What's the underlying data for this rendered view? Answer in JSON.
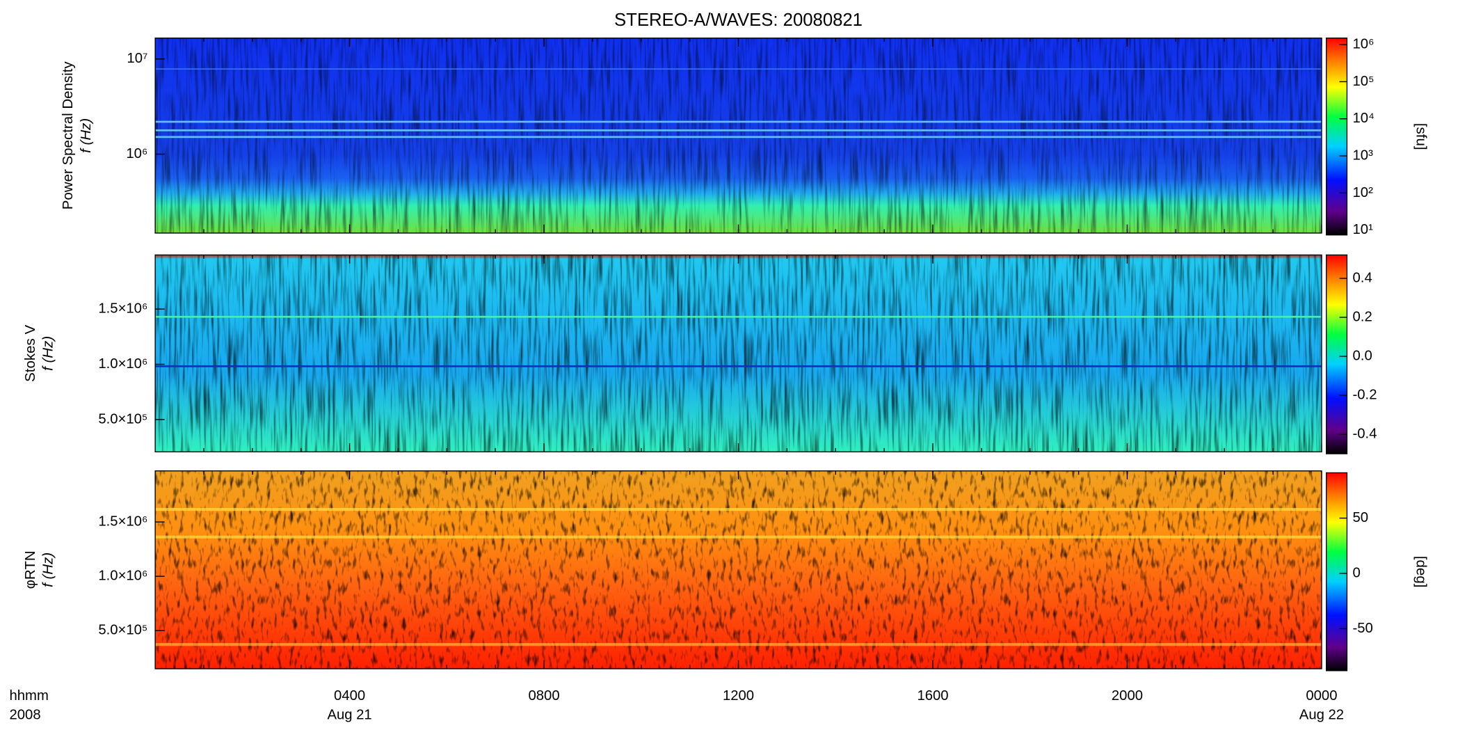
{
  "title": "STEREO-A/WAVES: 20080821",
  "x_axis": {
    "label": "hhmm",
    "year": "2008",
    "xlim": [
      0,
      24
    ],
    "xticks": [
      {
        "value": 4,
        "label": "0400"
      },
      {
        "value": 8,
        "label": "0800"
      },
      {
        "value": 12,
        "label": "1200"
      },
      {
        "value": 16,
        "label": "1600"
      },
      {
        "value": 20,
        "label": "2000"
      },
      {
        "value": 24,
        "label": "0000"
      }
    ],
    "dates": [
      {
        "value": 4,
        "label": "Aug 21"
      },
      {
        "value": 24,
        "label": "Aug 22"
      }
    ]
  },
  "chart_data": [
    {
      "type": "heatmap",
      "ylabel": [
        "Power Spectral Density",
        "f (Hz)"
      ],
      "ylog": true,
      "ylim": [
        148000,
        16600000
      ],
      "yticks": [
        {
          "value": 1000000,
          "label": "10⁶"
        },
        {
          "value": 10000000,
          "label": "10⁷"
        }
      ],
      "clog": true,
      "clim": [
        7.4,
        1500000
      ],
      "cticks": [
        {
          "value": 10,
          "label": "10¹"
        },
        {
          "value": 100,
          "label": "10²"
        },
        {
          "value": 1000,
          "label": "10³"
        },
        {
          "value": 10000,
          "label": "10⁴"
        },
        {
          "value": 100000,
          "label": "10⁵"
        },
        {
          "value": 1000000,
          "label": "10⁶"
        }
      ],
      "clabel": "[sfu]"
    },
    {
      "type": "heatmap",
      "ylabel": [
        "Stokes V",
        "f (Hz)"
      ],
      "ylog": false,
      "ylim": [
        207000,
        1990000
      ],
      "yticks": [
        {
          "value": 500000,
          "label": "5.0×10⁵"
        },
        {
          "value": 1000000,
          "label": "1.0×10⁶"
        },
        {
          "value": 1500000,
          "label": "1.5×10⁶"
        }
      ],
      "clog": false,
      "clim": [
        -0.5,
        0.52
      ],
      "cticks": [
        {
          "value": -0.4,
          "label": "-0.4"
        },
        {
          "value": -0.2,
          "label": "-0.2"
        },
        {
          "value": 0,
          "label": "0.0"
        },
        {
          "value": 0.2,
          "label": "0.2"
        },
        {
          "value": 0.4,
          "label": "0.4"
        }
      ]
    },
    {
      "type": "heatmap",
      "ylabel": [
        "φRTN",
        "f (Hz)"
      ],
      "ylog": false,
      "ylim": [
        149000,
        1970000
      ],
      "yticks": [
        {
          "value": 500000,
          "label": "5.0×10⁵"
        },
        {
          "value": 1000000,
          "label": "1.0×10⁶"
        },
        {
          "value": 1500000,
          "label": "1.5×10⁶"
        }
      ],
      "clog": false,
      "clim": [
        -88,
        91
      ],
      "cticks": [
        -50,
        0,
        50
      ],
      "clabel": "[deg]"
    }
  ]
}
